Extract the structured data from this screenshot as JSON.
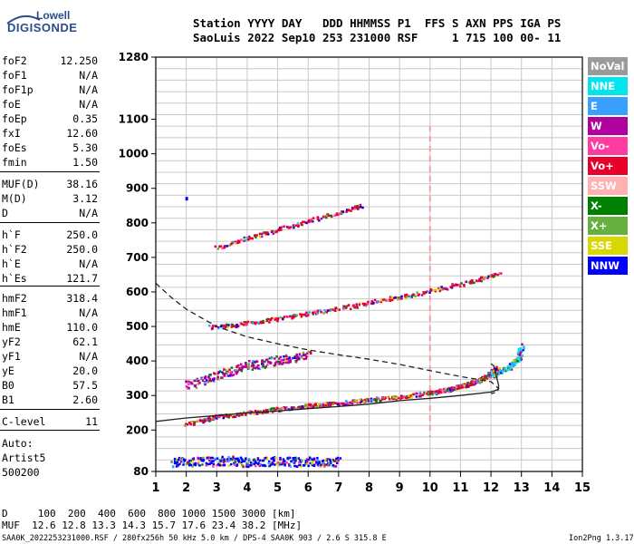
{
  "logo": {
    "brand_top": "Lowell",
    "brand_bottom": "DIGISONDE"
  },
  "header": {
    "line1": "Station YYYY DAY   DDD HHMMSS P1  FFS S AXN PPS IGA PS",
    "line2": "SaoLuis 2022 Sep10 253 231000 RSF     1 715 100 00- 11"
  },
  "params": [
    {
      "label": "foF2",
      "value": "12.250"
    },
    {
      "label": "foF1",
      "value": "N/A"
    },
    {
      "label": "foF1p",
      "value": "N/A"
    },
    {
      "label": "foE",
      "value": "N/A"
    },
    {
      "label": "foEp",
      "value": "0.35"
    },
    {
      "label": "fxI",
      "value": "12.60"
    },
    {
      "label": "foEs",
      "value": "5.30"
    },
    {
      "label": "fmin",
      "value": "1.50"
    },
    {
      "label": "MUF(D)",
      "value": "38.16"
    },
    {
      "label": "M(D)",
      "value": "3.12"
    },
    {
      "label": "D",
      "value": "N/A"
    },
    {
      "label": "h`F",
      "value": "250.0"
    },
    {
      "label": "h`F2",
      "value": "250.0"
    },
    {
      "label": "h`E",
      "value": "N/A"
    },
    {
      "label": "h`Es",
      "value": "121.7"
    },
    {
      "label": "hmF2",
      "value": "318.4"
    },
    {
      "label": "hmF1",
      "value": "N/A"
    },
    {
      "label": "hmE",
      "value": "110.0"
    },
    {
      "label": "yF2",
      "value": "62.1"
    },
    {
      "label": "yF1",
      "value": "N/A"
    },
    {
      "label": "yE",
      "value": "20.0"
    },
    {
      "label": "B0",
      "value": "57.5"
    },
    {
      "label": "B1",
      "value": "2.60"
    },
    {
      "label": "C-level",
      "value": "11"
    }
  ],
  "auto": {
    "line1": "Auto:",
    "line2": "Artist5",
    "line3": "500200"
  },
  "legend": [
    {
      "label": "NoVal",
      "color": "#9a9a9a"
    },
    {
      "label": "NNE",
      "color": "#00e5ee"
    },
    {
      "label": "E",
      "color": "#3aa0ff"
    },
    {
      "label": "W",
      "color": "#b000a0"
    },
    {
      "label": "Vo-",
      "color": "#ff3aa0"
    },
    {
      "label": "Vo+",
      "color": "#e8002a"
    },
    {
      "label": "SSW",
      "color": "#ffb0b0"
    },
    {
      "label": "X-",
      "color": "#008000"
    },
    {
      "label": "X+",
      "color": "#66b040"
    },
    {
      "label": "SSE",
      "color": "#d8d800"
    },
    {
      "label": "NNW",
      "color": "#0000ff"
    }
  ],
  "chart_data": {
    "type": "scatter",
    "title": "",
    "xlabel": "",
    "ylabel": "",
    "xlim": [
      1,
      15
    ],
    "xticks": [
      1,
      2,
      3,
      4,
      5,
      6,
      7,
      8,
      9,
      10,
      11,
      12,
      13,
      14,
      15
    ],
    "ylim": [
      80,
      1280
    ],
    "yticks": [
      80,
      200,
      300,
      400,
      500,
      600,
      700,
      800,
      900,
      1000,
      1100,
      1280
    ],
    "grid": true,
    "legend_position": "right",
    "traces": [
      {
        "name": "F2 O-trace",
        "color": "#e8002a",
        "x": [
          2.0,
          3.0,
          4.0,
          5.0,
          6.0,
          7.0,
          8.0,
          9.0,
          10.0,
          10.5,
          11.0,
          11.5,
          11.8,
          12.0,
          12.2
        ],
        "y": [
          220,
          240,
          252,
          262,
          272,
          280,
          290,
          298,
          310,
          318,
          328,
          342,
          355,
          368,
          382
        ]
      },
      {
        "name": "F2 2nd hop",
        "color": "#e8002a",
        "x": [
          2.8,
          3.5,
          4.5,
          5.5,
          6.5,
          7.5,
          8.5,
          9.5,
          10.5,
          11.5,
          12.3
        ],
        "y": [
          500,
          505,
          518,
          532,
          548,
          562,
          580,
          595,
          615,
          636,
          660
        ]
      },
      {
        "name": "F2 3rd hop",
        "color": "#e8002a",
        "x": [
          3.0,
          4.0,
          5.0,
          6.0,
          7.0,
          7.8
        ],
        "y": [
          730,
          758,
          782,
          808,
          832,
          855
        ]
      },
      {
        "name": "X-trace",
        "color": "#00e5ee",
        "x": [
          12.0,
          12.3,
          12.6,
          12.9,
          13.0
        ],
        "y": [
          360,
          372,
          385,
          410,
          450
        ]
      },
      {
        "name": "Es",
        "color": "#0000ff",
        "x": [
          1.5,
          2.0,
          2.5,
          3.0,
          3.5,
          4.0,
          4.5,
          5.0,
          5.5,
          6.0,
          6.5,
          7.0
        ],
        "y": [
          108,
          110,
          112,
          110,
          115,
          108,
          110,
          112,
          110,
          111,
          109,
          110
        ]
      },
      {
        "name": "Spread F",
        "color": "#b000a0",
        "x": [
          2.0,
          2.5,
          3.0,
          3.5,
          4.0,
          4.5,
          5.0,
          5.5,
          6.0
        ],
        "y": [
          330,
          345,
          360,
          375,
          390,
          395,
          405,
          410,
          420
        ]
      }
    ],
    "profile_solid": {
      "x": [
        1.0,
        2.0,
        3.0,
        4.0,
        5.0,
        6.0,
        7.0,
        8.0,
        9.0,
        10.0,
        11.0,
        12.0,
        12.25,
        12.25,
        12.1,
        12.0
      ],
      "y": [
        225,
        235,
        242,
        250,
        255,
        262,
        268,
        275,
        285,
        292,
        300,
        310,
        318,
        330,
        385,
        392
      ]
    },
    "profile_dashed": {
      "x": [
        1.0,
        1.5,
        2.0,
        3.0,
        4.0,
        5.0,
        6.0,
        7.0,
        8.0,
        9.0,
        10.0,
        11.0,
        12.0,
        12.25,
        12.2,
        12.0
      ],
      "y": [
        625,
        585,
        550,
        500,
        470,
        450,
        432,
        418,
        405,
        390,
        372,
        355,
        340,
        320,
        310,
        305
      ]
    },
    "ssw_column": {
      "x": 10.0,
      "y_range": [
        180,
        1080
      ]
    }
  },
  "footer": {
    "line1": "D     100  200  400  600  800 1000 1500 3000 [km]",
    "line2": "MUF  12.6 12.8 13.3 14.3 15.7 17.6 23.4 38.2 [MHz]",
    "line3": "SAA0K_2022253231000.RSF / 280fx256h 50 kHz 5.0 km / DPS-4 SAA0K 903 / 2.6 S 315.8 E",
    "version": "Ion2Png 1.3.17"
  }
}
